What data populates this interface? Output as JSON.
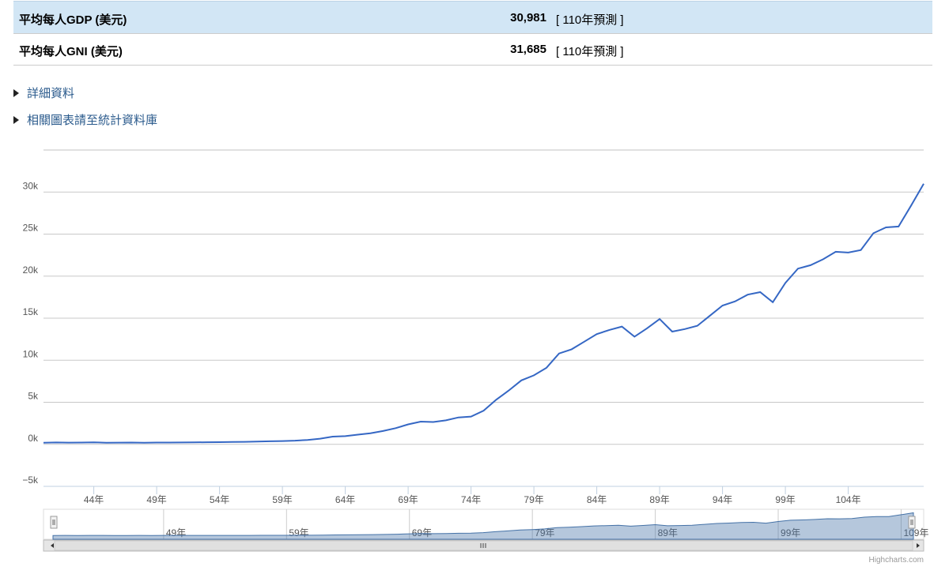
{
  "table": {
    "rows": [
      [
        "平均每人GDP (美元)",
        "30,981",
        "[ 110年預測 ]"
      ],
      [
        "平均每人GNI (美元)",
        "31,685",
        "[ 110年預測 ]"
      ]
    ]
  },
  "links": [
    "詳細資料",
    "相關圖表請至統計資料庫"
  ],
  "credit": "Highcharts.com",
  "chart_data": {
    "type": "line",
    "color": "#3567c4",
    "x": [
      40,
      41,
      42,
      43,
      44,
      45,
      46,
      47,
      48,
      49,
      50,
      51,
      52,
      53,
      54,
      55,
      56,
      57,
      58,
      59,
      60,
      61,
      62,
      63,
      64,
      65,
      66,
      67,
      68,
      69,
      70,
      71,
      72,
      73,
      74,
      75,
      76,
      77,
      78,
      79,
      80,
      81,
      82,
      83,
      84,
      85,
      86,
      87,
      88,
      89,
      90,
      91,
      92,
      93,
      94,
      95,
      96,
      97,
      98,
      99,
      100,
      101,
      102,
      103,
      104,
      105,
      106,
      107,
      108,
      109,
      110
    ],
    "values": [
      196,
      220,
      200,
      210,
      230,
      195,
      205,
      215,
      180,
      210,
      211,
      223,
      230,
      250,
      260,
      280,
      300,
      330,
      360,
      390,
      440,
      520,
      670,
      920,
      970,
      1150,
      1320,
      1580,
      1920,
      2370,
      2700,
      2650,
      2850,
      3200,
      3300,
      4000,
      5300,
      6400,
      7600,
      8200,
      9100,
      10800,
      11300,
      12200,
      13100,
      13600,
      14000,
      12800,
      13800,
      14900,
      13400,
      13700,
      14100,
      15300,
      16500,
      17000,
      17800,
      18100,
      16900,
      19200,
      20900,
      21300,
      22000,
      22900,
      22800,
      23100,
      25100,
      25800,
      25900,
      28400,
      30981
    ],
    "xlim": [
      40,
      110
    ],
    "xticks": [
      {
        "value": 44,
        "label": "44年"
      },
      {
        "value": 49,
        "label": "49年"
      },
      {
        "value": 54,
        "label": "54年"
      },
      {
        "value": 59,
        "label": "59年"
      },
      {
        "value": 64,
        "label": "64年"
      },
      {
        "value": 69,
        "label": "69年"
      },
      {
        "value": 74,
        "label": "74年"
      },
      {
        "value": 79,
        "label": "79年"
      },
      {
        "value": 84,
        "label": "84年"
      },
      {
        "value": 89,
        "label": "89年"
      },
      {
        "value": 94,
        "label": "94年"
      },
      {
        "value": 99,
        "label": "99年"
      },
      {
        "value": 104,
        "label": "104年"
      }
    ],
    "ylim": [
      -5000,
      35000
    ],
    "yticks": [
      {
        "value": -5000,
        "label": "−5k"
      },
      {
        "value": 0,
        "label": "0k"
      },
      {
        "value": 5000,
        "label": "5k"
      },
      {
        "value": 10000,
        "label": "10k"
      },
      {
        "value": 15000,
        "label": "15k"
      },
      {
        "value": 20000,
        "label": "20k"
      },
      {
        "value": 25000,
        "label": "25k"
      },
      {
        "value": 30000,
        "label": "30k"
      }
    ],
    "grid": true,
    "navigator_xticks": [
      {
        "value": 49,
        "label": "49年"
      },
      {
        "value": 59,
        "label": "59年"
      },
      {
        "value": 69,
        "label": "69年"
      },
      {
        "value": 79,
        "label": "79年"
      },
      {
        "value": 89,
        "label": "89年"
      },
      {
        "value": 99,
        "label": "99年"
      },
      {
        "value": 109,
        "label": "109年"
      }
    ]
  }
}
